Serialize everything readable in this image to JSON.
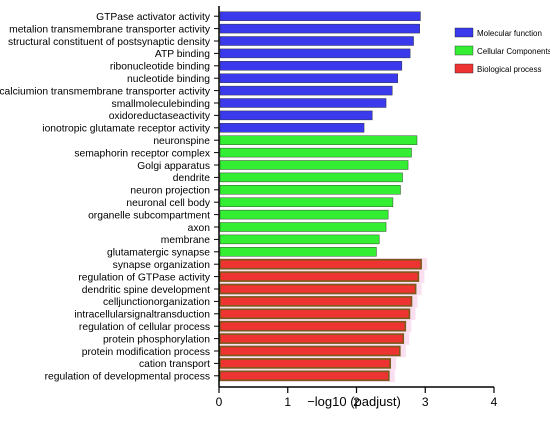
{
  "chart_data": {
    "type": "bar",
    "orientation": "horizontal",
    "xlabel": "−log10 (padjust)",
    "ylabel": "",
    "xlim": [
      0,
      4
    ],
    "xticks": [
      "0",
      "1",
      "2",
      "3",
      "4"
    ],
    "grid": false,
    "legend_position": "top-right",
    "series": [
      {
        "name": "Molecular function",
        "color": "#3a3aec",
        "categories": [
          "GTPase activator activity",
          "metalion transmembrane transporter activity",
          "structural constituent of postsynaptic density",
          "ATP binding",
          "ribonucleotide binding",
          "nucleotide binding",
          "calciumion transmembrane transporter activity",
          "smallmoleculebinding",
          "oxidoreductaseactivity",
          "ionotropic glutamate receptor activity"
        ],
        "values": [
          2.93,
          2.92,
          2.83,
          2.78,
          2.66,
          2.6,
          2.52,
          2.43,
          2.23,
          2.11
        ]
      },
      {
        "name": "Cellular Components",
        "color": "#33ee33",
        "categories": [
          "neuronspine",
          "semaphorin receptor complex",
          "Golgi apparatus",
          "dendrite",
          "neuron projection",
          "neuronal cell body",
          "organelle subcompartment",
          "axon",
          "membrane",
          "glutamatergic synapse"
        ],
        "values": [
          2.88,
          2.8,
          2.75,
          2.67,
          2.64,
          2.53,
          2.46,
          2.43,
          2.33,
          2.29
        ]
      },
      {
        "name": "Biological process",
        "color": "#ee3333",
        "categories": [
          "synapse organization",
          "regulation of GTPase activity",
          "dendritic spine development",
          "celljunctionorganization",
          "intracellularsignaltransduction",
          "regulation of cellular process",
          "protein phosphorylation",
          "protein modification process",
          "cation transport",
          "regulation of developmental process"
        ],
        "values": [
          2.94,
          2.9,
          2.86,
          2.8,
          2.77,
          2.71,
          2.68,
          2.63,
          2.49,
          2.47
        ]
      }
    ]
  }
}
